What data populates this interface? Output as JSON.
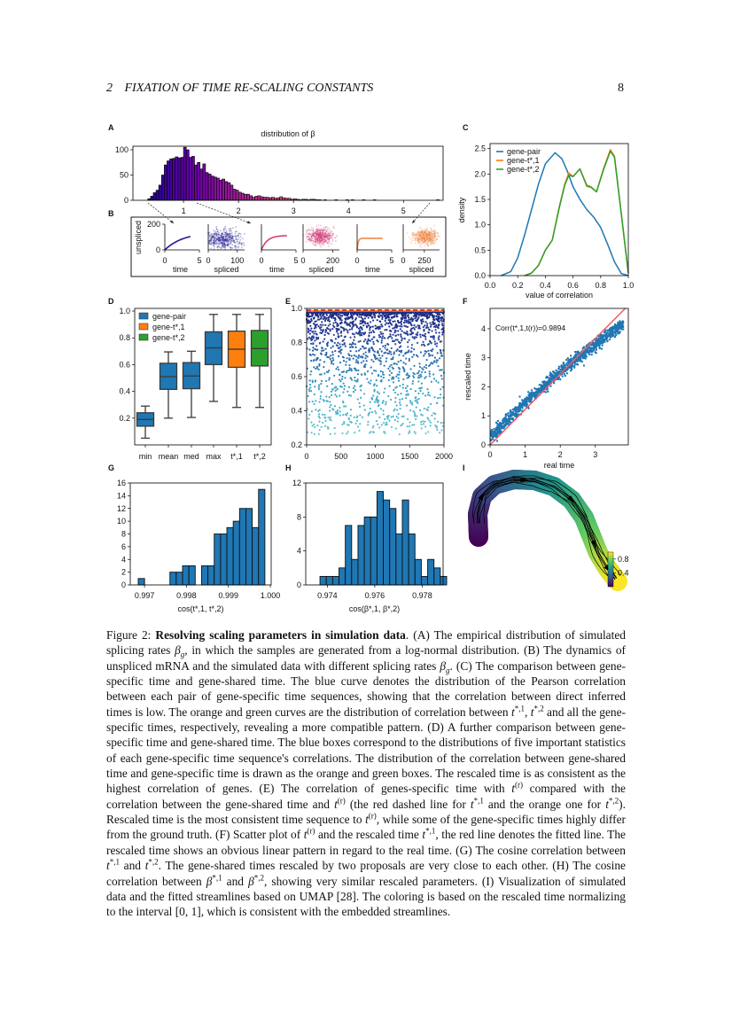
{
  "header": {
    "section_number": "2",
    "section_title": "FIXATION OF TIME RE-SCALING CONSTANTS",
    "page_number": "8"
  },
  "panel_letters": [
    "A",
    "B",
    "C",
    "D",
    "E",
    "F",
    "G",
    "H",
    "I"
  ],
  "chart_data": [
    {
      "panel": "A",
      "type": "bar",
      "title": "distribution of β",
      "bin_start": 0.35,
      "bin_width": 0.05,
      "values": [
        3,
        8,
        15,
        20,
        30,
        50,
        70,
        78,
        82,
        83,
        86,
        84,
        85,
        105,
        100,
        85,
        87,
        70,
        75,
        62,
        72,
        55,
        52,
        48,
        46,
        44,
        40,
        42,
        37,
        35,
        30,
        22,
        20,
        16,
        14,
        12,
        12,
        9,
        6,
        8,
        9,
        7,
        6,
        6,
        5,
        6,
        4,
        5,
        7,
        5,
        4,
        4,
        2,
        3,
        2,
        1,
        2,
        2,
        1,
        2,
        2,
        1,
        1
      ],
      "tail_bins": [
        3.55,
        3.75,
        3.95,
        4.05,
        4.25,
        4.45,
        5.6
      ],
      "tail_count": 1,
      "xlim": [
        0.08,
        5.72
      ],
      "ylim": [
        0,
        107
      ],
      "xticks": [
        "1",
        "2",
        "3",
        "4",
        "5"
      ],
      "yticks": [
        "0",
        "50",
        "100"
      ],
      "colormap": "plasma"
    },
    {
      "panel": "B",
      "type": "line+scatter",
      "ylabel": "unspliced",
      "time_label": "time",
      "spliced_label": "spliced",
      "time_ticks": [
        "0",
        "5"
      ],
      "unspliced_ticks": [
        "0",
        "200"
      ],
      "examples": [
        {
          "beta": 0.37,
          "color": "#1f1a8f",
          "u_max": 140,
          "spliced_ticks": [
            "0",
            "100"
          ],
          "spliced_xlim": [
            0,
            125
          ],
          "spliced_center": 47
        },
        {
          "beta": 1.2,
          "color": "#d0407a",
          "u_max": 112,
          "spliced_ticks": [
            "0",
            "200"
          ],
          "spliced_xlim": [
            0,
            245
          ],
          "spliced_center": 115
        },
        {
          "beta": 5.6,
          "color": "#f08a4b",
          "u_max": 90,
          "spliced_ticks": [
            "0",
            "250"
          ],
          "spliced_xlim": [
            0,
            430
          ],
          "spliced_center": 270
        }
      ]
    },
    {
      "panel": "C",
      "type": "line",
      "xlabel": "value of correlation",
      "ylabel": "density",
      "xlim": [
        0,
        1
      ],
      "ylim": [
        0,
        2.6
      ],
      "legend": "top-left",
      "xticks": [
        "0.0",
        "0.2",
        "0.4",
        "0.6",
        "0.8",
        "1.0"
      ],
      "yticks": [
        "0.0",
        "0.5",
        "1.0",
        "1.5",
        "2.0",
        "2.5"
      ],
      "series": [
        {
          "name": "gene-pair",
          "color": "#1f77b4",
          "points": [
            [
              0.08,
              0
            ],
            [
              0.15,
              0.08
            ],
            [
              0.2,
              0.35
            ],
            [
              0.25,
              0.8
            ],
            [
              0.3,
              1.3
            ],
            [
              0.35,
              1.8
            ],
            [
              0.4,
              2.2
            ],
            [
              0.47,
              2.42
            ],
            [
              0.52,
              2.3
            ],
            [
              0.56,
              2.05
            ],
            [
              0.6,
              1.75
            ],
            [
              0.65,
              1.5
            ],
            [
              0.7,
              1.3
            ],
            [
              0.75,
              1.15
            ],
            [
              0.8,
              0.95
            ],
            [
              0.85,
              0.62
            ],
            [
              0.9,
              0.27
            ],
            [
              0.95,
              0.04
            ],
            [
              1.0,
              0
            ]
          ]
        },
        {
          "name": "gene-t*,1",
          "color": "#ff7f0e",
          "points": [
            [
              0.25,
              0
            ],
            [
              0.3,
              0.05
            ],
            [
              0.35,
              0.2
            ],
            [
              0.4,
              0.5
            ],
            [
              0.45,
              0.7
            ],
            [
              0.5,
              1.35
            ],
            [
              0.54,
              1.8
            ],
            [
              0.57,
              2.02
            ],
            [
              0.6,
              1.95
            ],
            [
              0.65,
              2.1
            ],
            [
              0.7,
              1.78
            ],
            [
              0.73,
              1.75
            ],
            [
              0.77,
              1.65
            ],
            [
              0.82,
              2.1
            ],
            [
              0.87,
              2.48
            ],
            [
              0.9,
              2.35
            ],
            [
              0.95,
              1.2
            ],
            [
              1.0,
              0.05
            ]
          ]
        },
        {
          "name": "gene-t*,2",
          "color": "#2ca02c",
          "points": [
            [
              0.25,
              0
            ],
            [
              0.3,
              0.05
            ],
            [
              0.35,
              0.2
            ],
            [
              0.4,
              0.5
            ],
            [
              0.45,
              0.7
            ],
            [
              0.5,
              1.33
            ],
            [
              0.54,
              1.78
            ],
            [
              0.57,
              1.98
            ],
            [
              0.6,
              1.95
            ],
            [
              0.65,
              2.1
            ],
            [
              0.7,
              1.76
            ],
            [
              0.73,
              1.74
            ],
            [
              0.77,
              1.65
            ],
            [
              0.82,
              2.08
            ],
            [
              0.87,
              2.45
            ],
            [
              0.9,
              2.33
            ],
            [
              0.95,
              1.2
            ],
            [
              1.0,
              0.05
            ]
          ]
        }
      ]
    },
    {
      "panel": "D",
      "type": "box",
      "ylim": [
        0.0,
        1.02
      ],
      "legend": "top-left",
      "categories": [
        "min",
        "mean",
        "med",
        "max",
        "t*,1",
        "t*,2"
      ],
      "yticks": [
        "0.2",
        "0.4",
        "0.6",
        "0.8",
        "1.0"
      ],
      "legend_entries": [
        {
          "name": "gene-pair",
          "color": "#1f77b4"
        },
        {
          "name": "gene-t*,1",
          "color": "#ff7f0e"
        },
        {
          "name": "gene-t*,2",
          "color": "#2ca02c"
        }
      ],
      "boxes": [
        {
          "whislo": 0.05,
          "q1": 0.14,
          "med": 0.19,
          "q3": 0.24,
          "whishi": 0.29,
          "color": "#1f77b4"
        },
        {
          "whislo": 0.2,
          "q1": 0.415,
          "med": 0.51,
          "q3": 0.61,
          "whishi": 0.695,
          "color": "#1f77b4"
        },
        {
          "whislo": 0.205,
          "q1": 0.42,
          "med": 0.515,
          "q3": 0.615,
          "whishi": 0.7,
          "color": "#1f77b4"
        },
        {
          "whislo": 0.325,
          "q1": 0.6,
          "med": 0.725,
          "q3": 0.845,
          "whishi": 0.975,
          "color": "#1f77b4"
        },
        {
          "whislo": 0.28,
          "q1": 0.58,
          "med": 0.715,
          "q3": 0.85,
          "whishi": 0.975,
          "color": "#ff7f0e"
        },
        {
          "whislo": 0.28,
          "q1": 0.59,
          "med": 0.72,
          "q3": 0.855,
          "whishi": 0.975,
          "color": "#2ca02c"
        }
      ]
    },
    {
      "panel": "E",
      "type": "scatter",
      "xlim": [
        0,
        2000
      ],
      "ylim": [
        0.2,
        1.0
      ],
      "xticks": [
        "0",
        "500",
        "1000",
        "1500",
        "2000"
      ],
      "yticks": [
        "0.2",
        "0.4",
        "0.6",
        "0.8",
        "1.0"
      ],
      "reference_lines": [
        {
          "y": 0.99,
          "color": "#d62728",
          "style": "dashed"
        },
        {
          "y": 0.99,
          "color": "#ff7f0e",
          "style": "solid"
        }
      ]
    },
    {
      "panel": "F",
      "type": "scatter",
      "xlabel": "real time",
      "ylabel": "rescaled time",
      "xlim": [
        0,
        3.94
      ],
      "ylim": [
        0,
        4.7
      ],
      "xticks": [
        "0",
        "1",
        "2",
        "3"
      ],
      "yticks": [
        "0",
        "1",
        "2",
        "3",
        "4"
      ],
      "annotation": "Corr(t*,1,t(r))=0.9894",
      "point_color": "#1f77b4",
      "fit_line": {
        "slope": 1.22,
        "intercept": 0,
        "color": "#ee5a5f"
      }
    },
    {
      "panel": "G",
      "type": "bar",
      "xlabel": "cos(t*,1, t*,2)",
      "bin_start": 0.99685,
      "bin_width": 0.000151,
      "values": [
        1,
        0,
        0,
        0,
        0,
        2,
        2,
        3,
        3,
        0,
        3,
        3,
        8,
        8,
        9,
        10,
        12,
        12,
        9,
        15
      ],
      "xlim": [
        0.99666,
        1.00002
      ],
      "ylim": [
        0,
        16
      ],
      "xticks": [
        "0.997",
        "0.998",
        "0.999",
        "1.000"
      ],
      "yticks": [
        "0",
        "2",
        "4",
        "6",
        "8",
        "10",
        "12",
        "14",
        "16"
      ],
      "color": "#1f77b4"
    },
    {
      "panel": "H",
      "type": "bar",
      "xlabel": "cos(β*,1, β*,2)",
      "bin_start": 0.97369,
      "bin_width": 0.000267,
      "values": [
        1,
        1,
        1,
        2,
        7,
        3,
        7,
        8,
        8,
        11,
        10,
        9,
        6,
        10,
        6,
        3,
        1,
        3,
        2,
        1
      ],
      "xlim": [
        0.97309,
        0.97888
      ],
      "ylim": [
        0,
        12
      ],
      "xticks": [
        "0.974",
        "0.976",
        "0.978"
      ],
      "yticks": [
        "0",
        "4",
        "8",
        "12"
      ],
      "color": "#1f77b4"
    },
    {
      "panel": "I",
      "type": "embedding",
      "colormap": "viridis",
      "colorbar_ticks": [
        "0.8",
        "0.4"
      ],
      "colorbar_range": [
        0,
        1
      ]
    }
  ],
  "caption": [
    {
      "t": "Figure 2: "
    },
    {
      "t": "Resolving scaling parameters in simulation data",
      "s": "b"
    },
    {
      "t": ". (A) The empirical distribution of simulated splicing rates "
    },
    {
      "t": "β",
      "s": "m"
    },
    {
      "t": "g",
      "s": "sub"
    },
    {
      "t": ", in which the samples are generated from a log-normal distribution. (B) The dynamics of unspliced mRNA and the simulated data with different splicing rates "
    },
    {
      "t": "β",
      "s": "m"
    },
    {
      "t": "g",
      "s": "sub"
    },
    {
      "t": ". (C) The comparison between gene-specific time and gene-shared time. The blue curve denotes the distribution of the Pearson correlation between each pair of gene-specific time sequences, showing that the correlation between direct inferred times is low. The orange and green curves are the distribution of correlation between "
    },
    {
      "t": "t",
      "s": "m"
    },
    {
      "t": "*,1",
      "s": "sup"
    },
    {
      "t": ", "
    },
    {
      "t": "t",
      "s": "m"
    },
    {
      "t": "*,2",
      "s": "sup"
    },
    {
      "t": " and all the gene-specific times, respectively, revealing a more compatible pattern. (D) A further comparison between gene-specific time and gene-shared time. The blue boxes correspond to the distributions of five important statistics of each gene-specific time sequence's correlations. The distribution of the correlation between gene-shared time and gene-specific time is drawn as the orange and green boxes. The rescaled time is as consistent as the highest correlation of genes. (E) The correlation of genes-specific time with "
    },
    {
      "t": "t",
      "s": "m"
    },
    {
      "t": "(r)",
      "s": "sup"
    },
    {
      "t": " compared with the correlation between the gene-shared time and "
    },
    {
      "t": "t",
      "s": "m"
    },
    {
      "t": "(r)",
      "s": "sup"
    },
    {
      "t": " (the red dashed line for "
    },
    {
      "t": "t",
      "s": "m"
    },
    {
      "t": "*,1",
      "s": "sup"
    },
    {
      "t": " and the orange one for "
    },
    {
      "t": "t",
      "s": "m"
    },
    {
      "t": "*,2",
      "s": "sup"
    },
    {
      "t": "). Rescaled time is the most consistent time sequence to "
    },
    {
      "t": "t",
      "s": "m"
    },
    {
      "t": "(r)",
      "s": "sup"
    },
    {
      "t": ", while some of the gene-specific times highly differ from the ground truth. (F) Scatter plot of "
    },
    {
      "t": "t",
      "s": "m"
    },
    {
      "t": "(r)",
      "s": "sup"
    },
    {
      "t": " and the rescaled time "
    },
    {
      "t": "t",
      "s": "m"
    },
    {
      "t": "*,1",
      "s": "sup"
    },
    {
      "t": ", the red line denotes the fitted line. The rescaled time shows an obvious linear pattern in regard to the real time. (G) The cosine correlation between "
    },
    {
      "t": "t",
      "s": "m"
    },
    {
      "t": "*,1",
      "s": "sup"
    },
    {
      "t": " and "
    },
    {
      "t": "t",
      "s": "m"
    },
    {
      "t": "*,2",
      "s": "sup"
    },
    {
      "t": ". The gene-shared times rescaled by two proposals are very close to each other. (H) The cosine correlation between "
    },
    {
      "t": "β",
      "s": "m"
    },
    {
      "t": "*,1",
      "s": "sup"
    },
    {
      "t": " and "
    },
    {
      "t": "β",
      "s": "m"
    },
    {
      "t": "*,2",
      "s": "sup"
    },
    {
      "t": ", showing very similar rescaled parameters. (I) Visualization of simulated data and the fitted streamlines based on UMAP [28]. The coloring is based on the rescaled time normalizing to the interval [0, 1], which is consistent with the embedded streamlines."
    }
  ]
}
